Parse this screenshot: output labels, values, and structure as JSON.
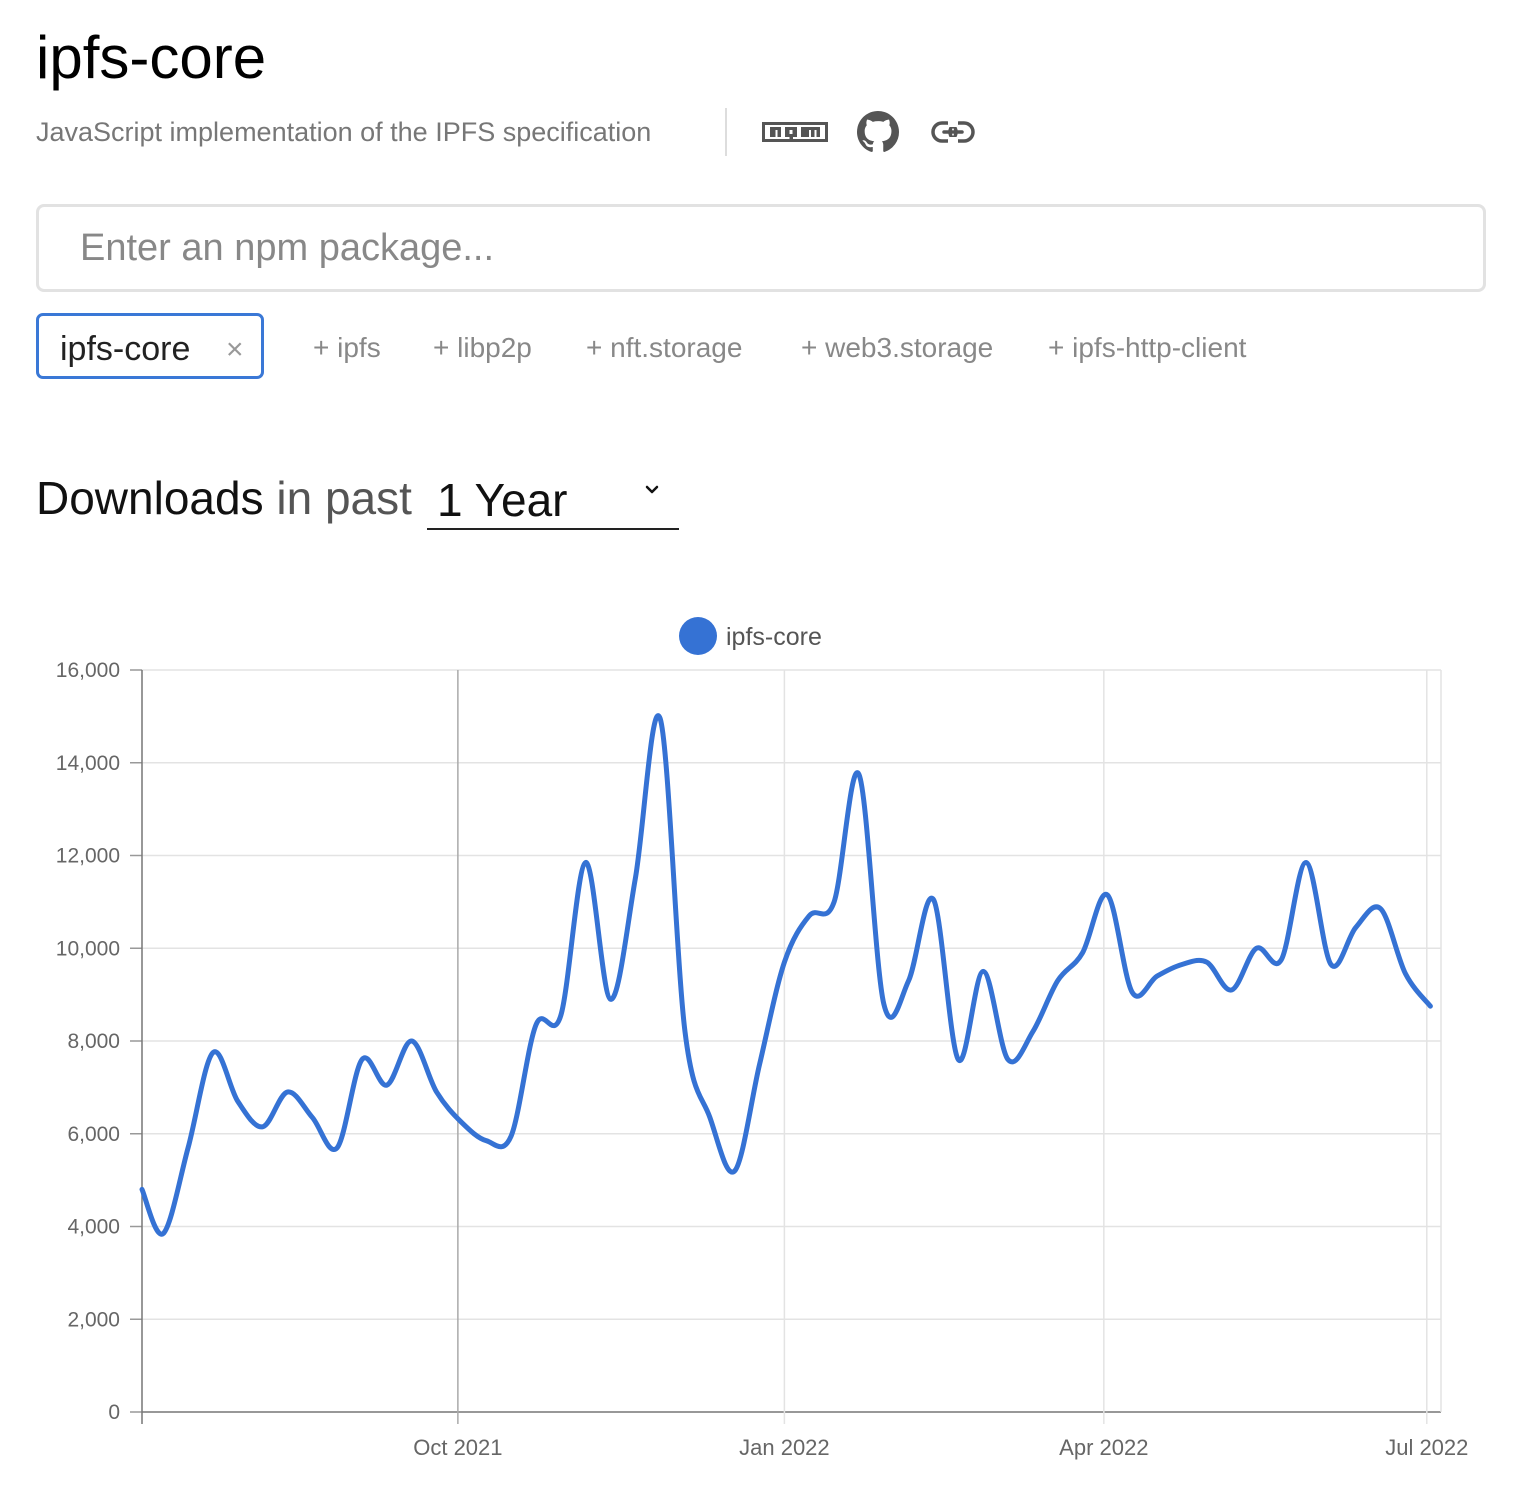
{
  "package": {
    "name": "ipfs-core",
    "description": "JavaScript implementation of the IPFS specification"
  },
  "links": {
    "npm_icon": "npm-icon",
    "github_icon": "github-icon",
    "homepage_icon": "link-icon"
  },
  "search": {
    "placeholder": "Enter an npm package..."
  },
  "selected": {
    "label": "ipfs-core",
    "remove_symbol": "×"
  },
  "suggestions": [
    {
      "label": "+ ipfs"
    },
    {
      "label": "+ libp2p"
    },
    {
      "label": "+ nft.storage"
    },
    {
      "label": "+ web3.storage"
    },
    {
      "label": "+ ipfs-http-client"
    }
  ],
  "downloads": {
    "heading_strong": "Downloads",
    "heading_light": "in past",
    "period": "1 Year",
    "caret_icon": "chevron-down-icon"
  },
  "colors": {
    "accent": "#3a78d6",
    "series": "#3572d4"
  },
  "chart_data": {
    "type": "line",
    "title": "",
    "xlabel": "",
    "ylabel": "",
    "ylim": [
      0,
      16000
    ],
    "yticks": [
      0,
      2000,
      4000,
      6000,
      8000,
      10000,
      12000,
      14000,
      16000
    ],
    "ytick_labels": [
      "0",
      "2,000",
      "4,000",
      "6,000",
      "8,000",
      "10,000",
      "12,000",
      "14,000",
      "16,000"
    ],
    "xlim": [
      "2021-07-04",
      "2022-07-05"
    ],
    "xticks": [
      {
        "date": "2021-10-01",
        "label": "Oct 2021"
      },
      {
        "date": "2022-01-01",
        "label": "Jan 2022"
      },
      {
        "date": "2022-04-01",
        "label": "Apr 2022"
      },
      {
        "date": "2022-07-01",
        "label": "Jul 2022"
      }
    ],
    "grid": true,
    "legend": "top-center",
    "series": [
      {
        "name": "ipfs-core",
        "color": "#3572d4",
        "points": [
          [
            "2021-07-04",
            4800
          ],
          [
            "2021-07-10",
            3850
          ],
          [
            "2021-07-17",
            5700
          ],
          [
            "2021-07-24",
            7750
          ],
          [
            "2021-07-31",
            6700
          ],
          [
            "2021-08-07",
            6150
          ],
          [
            "2021-08-14",
            6900
          ],
          [
            "2021-08-21",
            6350
          ],
          [
            "2021-08-28",
            5700
          ],
          [
            "2021-09-04",
            7600
          ],
          [
            "2021-09-11",
            7050
          ],
          [
            "2021-09-18",
            8000
          ],
          [
            "2021-09-25",
            6900
          ],
          [
            "2021-10-02",
            6250
          ],
          [
            "2021-10-09",
            5850
          ],
          [
            "2021-10-16",
            5950
          ],
          [
            "2021-10-23",
            8350
          ],
          [
            "2021-10-30",
            8550
          ],
          [
            "2021-11-06",
            11850
          ],
          [
            "2021-11-13",
            8900
          ],
          [
            "2021-11-20",
            11500
          ],
          [
            "2021-11-27",
            14950
          ],
          [
            "2021-12-04",
            8200
          ],
          [
            "2021-12-11",
            6350
          ],
          [
            "2021-12-18",
            5200
          ],
          [
            "2021-12-25",
            7500
          ],
          [
            "2022-01-01",
            9700
          ],
          [
            "2022-01-08",
            10700
          ],
          [
            "2022-01-15",
            11000
          ],
          [
            "2022-01-22",
            13750
          ],
          [
            "2022-01-29",
            8800
          ],
          [
            "2022-02-05",
            9300
          ],
          [
            "2022-02-12",
            11050
          ],
          [
            "2022-02-19",
            7600
          ],
          [
            "2022-02-26",
            9500
          ],
          [
            "2022-03-05",
            7600
          ],
          [
            "2022-03-12",
            8200
          ],
          [
            "2022-03-19",
            9300
          ],
          [
            "2022-03-26",
            9900
          ],
          [
            "2022-04-02",
            11150
          ],
          [
            "2022-04-09",
            9050
          ],
          [
            "2022-04-16",
            9400
          ],
          [
            "2022-04-23",
            9650
          ],
          [
            "2022-04-30",
            9700
          ],
          [
            "2022-05-07",
            9100
          ],
          [
            "2022-05-14",
            10000
          ],
          [
            "2022-05-21",
            9750
          ],
          [
            "2022-05-28",
            11850
          ],
          [
            "2022-06-04",
            9650
          ],
          [
            "2022-06-11",
            10450
          ],
          [
            "2022-06-18",
            10850
          ],
          [
            "2022-06-25",
            9450
          ],
          [
            "2022-07-02",
            8750
          ]
        ]
      }
    ]
  }
}
